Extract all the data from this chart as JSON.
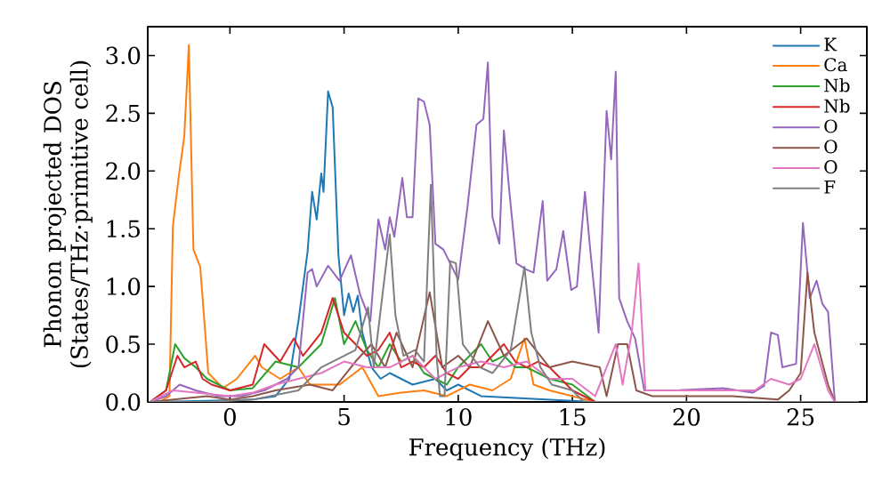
{
  "chart_data": {
    "type": "line",
    "xlabel": "Frequency (THz)",
    "ylabel": "Phonon projected DOS (States/THz·primitive cell)",
    "xlim": [
      -3.6,
      27.9
    ],
    "ylim": [
      0,
      3.25
    ],
    "xticks": [
      0,
      5,
      10,
      15,
      20,
      25
    ],
    "yticks": [
      {
        "value": 0,
        "label": "0.0"
      },
      {
        "value": 0.5,
        "label": "0.5"
      },
      {
        "value": 1,
        "label": "1.0"
      },
      {
        "value": 1.5,
        "label": "1.5"
      },
      {
        "value": 2,
        "label": "2.0"
      },
      {
        "value": 2.5,
        "label": "2.5"
      },
      {
        "value": 3,
        "label": "3.0"
      }
    ],
    "legend": "top right",
    "series": [
      {
        "name": "K",
        "color": "#1f77b4",
        "x": [
          -3.5,
          -1,
          1,
          2,
          2.6,
          3.0,
          3.4,
          3.6,
          3.8,
          4.0,
          4.1,
          4.3,
          4.5,
          4.75,
          5.0,
          5.2,
          5.4,
          5.6,
          5.8,
          6.2,
          6.6,
          7,
          8,
          9,
          9.5,
          10,
          11,
          13,
          15,
          16,
          27
        ],
        "values": [
          0,
          0.01,
          0.02,
          0.05,
          0.2,
          0.7,
          1.3,
          1.82,
          1.58,
          1.98,
          1.82,
          2.69,
          2.55,
          1.28,
          0.75,
          0.94,
          0.78,
          0.92,
          0.6,
          0.3,
          0.2,
          0.25,
          0.15,
          0.2,
          0.1,
          0.15,
          0.05,
          0.03,
          0.01,
          0,
          0
        ]
      },
      {
        "name": "Ca",
        "color": "#ff7f0e",
        "x": [
          -3.5,
          -3,
          -2.65,
          -2.5,
          -2.25,
          -2.0,
          -1.8,
          -1.6,
          -1.3,
          -0.95,
          -0.3,
          0.3,
          1.1,
          1.4,
          2.2,
          3.0,
          3.5,
          4.8,
          5.8,
          6.5,
          7.5,
          8.5,
          9.5,
          10.5,
          11.5,
          12.3,
          12.9,
          13.3,
          14,
          15,
          16,
          27
        ],
        "values": [
          0,
          0.01,
          0.05,
          1.52,
          1.94,
          2.3,
          3.09,
          1.32,
          1.17,
          0.25,
          0.12,
          0.2,
          0.4,
          0.3,
          0.2,
          0.3,
          0.15,
          0.15,
          0.3,
          0.05,
          0.08,
          0.1,
          0.05,
          0.15,
          0.1,
          0.2,
          0.55,
          0.15,
          0.1,
          0.05,
          0,
          0
        ]
      },
      {
        "name": "Nb",
        "color": "#2ca02c",
        "x": [
          -3.5,
          -2.8,
          -2.4,
          -2.0,
          -1.5,
          -1,
          0,
          1,
          2,
          3,
          4,
          4.6,
          5,
          5.5,
          6,
          6.5,
          7,
          7.5,
          8,
          8.5,
          9,
          9.5,
          10,
          10.5,
          11,
          11.5,
          12,
          12.5,
          13,
          13.5,
          14,
          15,
          16,
          27
        ],
        "values": [
          0,
          0.1,
          0.5,
          0.38,
          0.3,
          0.2,
          0.1,
          0.12,
          0.35,
          0.3,
          0.5,
          0.9,
          0.5,
          0.7,
          0.45,
          0.3,
          0.5,
          0.35,
          0.4,
          0.25,
          0.2,
          0.15,
          0.3,
          0.4,
          0.5,
          0.35,
          0.4,
          0.3,
          0.3,
          0.25,
          0.2,
          0.15,
          0,
          0
        ]
      },
      {
        "name": "Nb",
        "color": "#d62728",
        "x": [
          -3.5,
          -2.8,
          -2.3,
          -2.0,
          -1.5,
          -1.2,
          -0.8,
          0,
          1,
          1.5,
          2.2,
          2.8,
          3.2,
          4,
          4.5,
          5,
          5.5,
          6,
          6.5,
          7,
          7.5,
          8,
          8.5,
          9,
          9.5,
          10,
          10.5,
          11,
          11.5,
          12,
          12.5,
          13,
          13.5,
          14,
          15,
          16,
          27
        ],
        "values": [
          0,
          0.1,
          0.4,
          0.3,
          0.35,
          0.2,
          0.15,
          0.1,
          0.15,
          0.5,
          0.35,
          0.55,
          0.4,
          0.6,
          0.9,
          0.6,
          0.5,
          0.4,
          0.45,
          0.6,
          0.3,
          0.35,
          0.3,
          0.4,
          0.25,
          0.2,
          0.3,
          0.3,
          0.4,
          0.5,
          0.35,
          0.3,
          0.35,
          0.3,
          0.1,
          0,
          0
        ]
      },
      {
        "name": "O",
        "color": "#9467bd",
        "x": [
          -3.5,
          -2.8,
          -2.2,
          -1.5,
          -0.5,
          0.5,
          1.5,
          2.5,
          3.0,
          3.4,
          3.6,
          3.8,
          4.3,
          4.8,
          5.3,
          5.7,
          6.15,
          6.5,
          6.8,
          7.0,
          7.2,
          7.55,
          7.75,
          8.0,
          8.25,
          8.5,
          8.75,
          9.0,
          9.35,
          9.65,
          10.0,
          10.4,
          10.8,
          11.1,
          11.3,
          11.5,
          11.8,
          12.0,
          12.25,
          12.55,
          12.95,
          13.3,
          13.7,
          13.9,
          14.3,
          14.6,
          14.95,
          15.2,
          15.55,
          15.8,
          16.15,
          16.5,
          16.7,
          16.9,
          17.05,
          17.4,
          17.75,
          18.15,
          19.5,
          21.6,
          22.9,
          23.4,
          23.7,
          24.0,
          24.2,
          24.8,
          25.1,
          25.4,
          25.7,
          25.95,
          26.2,
          26.5,
          27.5
        ],
        "values": [
          0,
          0.05,
          0.15,
          0.1,
          0.05,
          0.05,
          0.1,
          0.2,
          0.3,
          1.12,
          1.15,
          1.0,
          1.18,
          1.05,
          1.27,
          0.93,
          0.7,
          1.58,
          1.32,
          1.6,
          1.43,
          1.94,
          1.6,
          1.6,
          2.63,
          2.6,
          2.4,
          1.37,
          1.32,
          1.2,
          1.06,
          1.68,
          2.4,
          2.45,
          2.94,
          1.6,
          1.37,
          2.35,
          1.8,
          1.2,
          1.15,
          1.12,
          1.74,
          1.05,
          1.15,
          1.48,
          0.97,
          1.0,
          1.82,
          1.28,
          0.6,
          2.52,
          2.1,
          2.86,
          0.9,
          0.7,
          0.55,
          0.1,
          0.1,
          0.12,
          0.08,
          0.14,
          0.6,
          0.58,
          0.3,
          0.33,
          1.55,
          0.9,
          1.05,
          0.85,
          0.78,
          0,
          0
        ]
      },
      {
        "name": "O",
        "color": "#8c564b",
        "x": [
          -3.5,
          -2,
          -1,
          0,
          1,
          2,
          3.5,
          4.5,
          5.5,
          6.2,
          6.8,
          7.3,
          8.0,
          8.75,
          9.3,
          10,
          10.5,
          11.3,
          12,
          13,
          14,
          15,
          16.2,
          16.5,
          17,
          17.4,
          17.8,
          18.5,
          22,
          24,
          24.5,
          25,
          25.3,
          25.6,
          26.2,
          26.5,
          27.5
        ],
        "values": [
          0,
          0.03,
          0.05,
          0.02,
          0.05,
          0.1,
          0.15,
          0.1,
          0.35,
          0.5,
          0.3,
          0.6,
          0.3,
          0.95,
          0.3,
          0.4,
          0.3,
          0.7,
          0.4,
          0.55,
          0.3,
          0.35,
          0.3,
          0.05,
          0.5,
          0.5,
          0.1,
          0.05,
          0.05,
          0.02,
          0.1,
          0.25,
          1.12,
          0.6,
          0.15,
          0,
          0
        ]
      },
      {
        "name": "O",
        "color": "#e377c2",
        "x": [
          -3.5,
          -2.5,
          -1.5,
          0,
          1,
          2,
          3,
          4,
          5,
          6,
          7,
          8,
          9,
          10,
          11,
          12,
          13,
          14,
          15,
          16,
          16.9,
          17.2,
          17.6,
          17.9,
          18.2,
          20,
          23,
          23.7,
          24.5,
          25,
          25.6,
          26.2,
          26.5,
          27.5
        ],
        "values": [
          0,
          0.1,
          0.08,
          0.05,
          0.08,
          0.15,
          0.2,
          0.25,
          0.35,
          0.3,
          0.3,
          0.4,
          0.2,
          0.3,
          0.35,
          0.3,
          0.35,
          0.2,
          0.2,
          0.05,
          0.5,
          0.15,
          0.6,
          1.2,
          0.1,
          0.1,
          0.1,
          0.2,
          0.15,
          0.2,
          0.5,
          0.1,
          0,
          0
        ]
      },
      {
        "name": "F",
        "color": "#7f7f7f",
        "x": [
          -3.5,
          -1,
          1,
          3,
          4,
          5.5,
          6.05,
          6.3,
          7.0,
          7.25,
          7.6,
          8.1,
          8.5,
          8.8,
          9.05,
          9.2,
          9.4,
          9.65,
          9.9,
          10.2,
          10.95,
          11.5,
          12.3,
          12.9,
          13.2,
          13.6,
          14.1,
          15,
          15.5,
          27.5
        ],
        "values": [
          0,
          0,
          0.02,
          0.1,
          0.3,
          0.45,
          0.82,
          0.3,
          1.45,
          0.75,
          0.4,
          0.45,
          0.35,
          1.88,
          0.4,
          0.05,
          0.05,
          1.22,
          1.2,
          0.5,
          0.3,
          0.25,
          0.45,
          1.17,
          0.6,
          0.3,
          0.15,
          0.1,
          0,
          0
        ]
      }
    ]
  }
}
